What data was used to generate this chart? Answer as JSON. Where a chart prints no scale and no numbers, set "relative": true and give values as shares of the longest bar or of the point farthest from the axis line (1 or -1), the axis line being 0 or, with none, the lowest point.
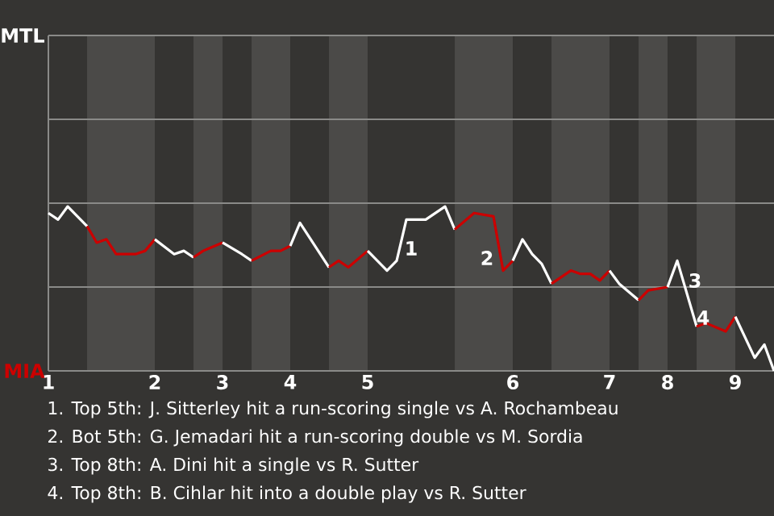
{
  "chart_data": {
    "type": "line",
    "relative": true,
    "categories": [
      "1",
      null,
      null,
      null,
      null,
      null,
      null,
      null,
      null,
      null,
      null,
      "2",
      null,
      null,
      null,
      null,
      null,
      null,
      "3",
      null,
      null,
      null,
      null,
      null,
      null,
      "4",
      null,
      null,
      null,
      null,
      null,
      null,
      null,
      "5",
      null,
      null,
      null,
      null,
      null,
      null,
      null,
      null,
      null,
      null,
      null,
      null,
      null,
      null,
      "6",
      null,
      null,
      null,
      null,
      null,
      null,
      null,
      null,
      null,
      "7",
      null,
      null,
      null,
      null,
      null,
      "8",
      null,
      null,
      null,
      null,
      null,
      null,
      "9",
      null,
      null,
      null,
      null
    ],
    "marker": "none",
    "line_style": "solid",
    "ref_lines": [
      {
        "axis": "y",
        "value": 0.51,
        "color": "#8a8a88"
      },
      {
        "axis": "y",
        "value": 1.02,
        "color": "#8a8a88"
      },
      {
        "axis": "y",
        "value": 1.53,
        "color": "#8a8a88"
      },
      {
        "axis": "y",
        "value": 2.04,
        "color": "#8a8a88"
      }
    ],
    "series": [
      {
        "color": "#ffffff",
        "values": [
          0.96,
          0.92,
          1,
          null,
          0.88,
          null,
          null,
          null,
          null,
          null,
          null,
          null,
          null,
          null,
          null,
          null,
          null,
          null,
          null,
          null,
          null,
          null,
          null,
          null,
          null,
          null,
          null,
          null,
          null,
          null,
          null,
          null,
          null,
          null,
          null,
          null,
          null,
          null,
          null,
          null,
          null,
          null,
          null,
          null,
          null,
          null,
          null,
          null,
          null,
          null,
          null,
          null,
          null,
          null,
          null,
          null,
          null,
          null,
          null,
          null,
          null,
          null,
          null,
          null,
          null,
          null,
          null,
          null,
          null,
          null,
          null,
          null,
          null,
          null,
          null,
          null
        ]
      },
      {
        "color": "#cc0000",
        "values": [
          null,
          null,
          null,
          null,
          0.88,
          0.78,
          0.8,
          0.71,
          null,
          0.71,
          0.73,
          0.8,
          null,
          null,
          null,
          null,
          null,
          null,
          null,
          null,
          null,
          null,
          null,
          null,
          null,
          null,
          null,
          null,
          null,
          null,
          null,
          null,
          null,
          null,
          null,
          null,
          null,
          null,
          null,
          null,
          null,
          null,
          null,
          null,
          null,
          null,
          null,
          null,
          null,
          null,
          null,
          null,
          null,
          null,
          null,
          null,
          null,
          null,
          null,
          null,
          null,
          null,
          null,
          null,
          null,
          null,
          null,
          null,
          null,
          null,
          null,
          null,
          null,
          null,
          null,
          null
        ]
      },
      {
        "color": "#ffffff",
        "values": [
          null,
          null,
          null,
          null,
          null,
          null,
          null,
          null,
          null,
          null,
          null,
          0.8,
          null,
          0.71,
          0.73,
          0.69,
          null,
          null,
          null,
          null,
          null,
          null,
          null,
          null,
          null,
          null,
          null,
          null,
          null,
          null,
          null,
          null,
          null,
          null,
          null,
          null,
          null,
          null,
          null,
          null,
          null,
          null,
          null,
          null,
          null,
          null,
          null,
          null,
          null,
          null,
          null,
          null,
          null,
          null,
          null,
          null,
          null,
          null,
          null,
          null,
          null,
          null,
          null,
          null,
          null,
          null,
          null,
          null,
          null,
          null,
          null,
          null,
          null,
          null,
          null,
          null
        ]
      },
      {
        "color": "#cc0000",
        "values": [
          null,
          null,
          null,
          null,
          null,
          null,
          null,
          null,
          null,
          null,
          null,
          null,
          null,
          null,
          null,
          0.69,
          0.73,
          null,
          0.78,
          null,
          null,
          null,
          null,
          null,
          null,
          null,
          null,
          null,
          null,
          null,
          null,
          null,
          null,
          null,
          null,
          null,
          null,
          null,
          null,
          null,
          null,
          null,
          null,
          null,
          null,
          null,
          null,
          null,
          null,
          null,
          null,
          null,
          null,
          null,
          null,
          null,
          null,
          null,
          null,
          null,
          null,
          null,
          null,
          null,
          null,
          null,
          null,
          null,
          null,
          null,
          null,
          null,
          null,
          null,
          null,
          null
        ]
      },
      {
        "color": "#ffffff",
        "values": [
          null,
          null,
          null,
          null,
          null,
          null,
          null,
          null,
          null,
          null,
          null,
          null,
          null,
          null,
          null,
          null,
          null,
          null,
          0.78,
          null,
          0.71,
          0.67,
          null,
          null,
          null,
          null,
          null,
          null,
          null,
          null,
          null,
          null,
          null,
          null,
          null,
          null,
          null,
          null,
          null,
          null,
          null,
          null,
          null,
          null,
          null,
          null,
          null,
          null,
          null,
          null,
          null,
          null,
          null,
          null,
          null,
          null,
          null,
          null,
          null,
          null,
          null,
          null,
          null,
          null,
          null,
          null,
          null,
          null,
          null,
          null,
          null,
          null,
          null,
          null,
          null,
          null
        ]
      },
      {
        "color": "#cc0000",
        "values": [
          null,
          null,
          null,
          null,
          null,
          null,
          null,
          null,
          null,
          null,
          null,
          null,
          null,
          null,
          null,
          null,
          null,
          null,
          null,
          null,
          null,
          0.67,
          null,
          0.73,
          0.73,
          0.76,
          null,
          null,
          null,
          null,
          null,
          null,
          null,
          null,
          null,
          null,
          null,
          null,
          null,
          null,
          null,
          null,
          null,
          null,
          null,
          null,
          null,
          null,
          null,
          null,
          null,
          null,
          null,
          null,
          null,
          null,
          null,
          null,
          null,
          null,
          null,
          null,
          null,
          null,
          null,
          null,
          null,
          null,
          null,
          null,
          null,
          null,
          null,
          null,
          null,
          null
        ]
      },
      {
        "color": "#ffffff",
        "values": [
          null,
          null,
          null,
          null,
          null,
          null,
          null,
          null,
          null,
          null,
          null,
          null,
          null,
          null,
          null,
          null,
          null,
          null,
          null,
          null,
          null,
          null,
          null,
          null,
          null,
          0.76,
          0.9,
          null,
          null,
          0.63,
          null,
          null,
          null,
          null,
          null,
          null,
          null,
          null,
          null,
          null,
          null,
          null,
          null,
          null,
          null,
          null,
          null,
          null,
          null,
          null,
          null,
          null,
          null,
          null,
          null,
          null,
          null,
          null,
          null,
          null,
          null,
          null,
          null,
          null,
          null,
          null,
          null,
          null,
          null,
          null,
          null,
          null,
          null,
          null,
          null,
          null
        ]
      },
      {
        "color": "#cc0000",
        "values": [
          null,
          null,
          null,
          null,
          null,
          null,
          null,
          null,
          null,
          null,
          null,
          null,
          null,
          null,
          null,
          null,
          null,
          null,
          null,
          null,
          null,
          null,
          null,
          null,
          null,
          null,
          null,
          null,
          null,
          0.63,
          0.67,
          0.63,
          null,
          0.73,
          null,
          null,
          null,
          null,
          null,
          null,
          null,
          null,
          null,
          null,
          null,
          null,
          null,
          null,
          null,
          null,
          null,
          null,
          null,
          null,
          null,
          null,
          null,
          null,
          null,
          null,
          null,
          null,
          null,
          null,
          null,
          null,
          null,
          null,
          null,
          null,
          null,
          null,
          null,
          null,
          null,
          null
        ]
      },
      {
        "color": "#ffffff",
        "values": [
          null,
          null,
          null,
          null,
          null,
          null,
          null,
          null,
          null,
          null,
          null,
          null,
          null,
          null,
          null,
          null,
          null,
          null,
          null,
          null,
          null,
          null,
          null,
          null,
          null,
          null,
          null,
          null,
          null,
          null,
          null,
          null,
          null,
          0.73,
          null,
          0.61,
          0.67,
          0.92,
          null,
          0.92,
          null,
          1,
          0.86,
          null,
          null,
          null,
          null,
          null,
          null,
          null,
          null,
          null,
          null,
          null,
          null,
          null,
          null,
          null,
          null,
          null,
          null,
          null,
          null,
          null,
          null,
          null,
          null,
          null,
          null,
          null,
          null,
          null,
          null,
          null,
          null,
          null
        ]
      },
      {
        "color": "#cc0000",
        "values": [
          null,
          null,
          null,
          null,
          null,
          null,
          null,
          null,
          null,
          null,
          null,
          null,
          null,
          null,
          null,
          null,
          null,
          null,
          null,
          null,
          null,
          null,
          null,
          null,
          null,
          null,
          null,
          null,
          null,
          null,
          null,
          null,
          null,
          null,
          null,
          null,
          null,
          null,
          null,
          null,
          null,
          null,
          0.86,
          null,
          0.96,
          null,
          0.94,
          0.61,
          0.67,
          null,
          null,
          null,
          null,
          null,
          null,
          null,
          null,
          null,
          null,
          null,
          null,
          null,
          null,
          null,
          null,
          null,
          null,
          null,
          null,
          null,
          null,
          null,
          null,
          null,
          null,
          null
        ]
      },
      {
        "color": "#ffffff",
        "values": [
          null,
          null,
          null,
          null,
          null,
          null,
          null,
          null,
          null,
          null,
          null,
          null,
          null,
          null,
          null,
          null,
          null,
          null,
          null,
          null,
          null,
          null,
          null,
          null,
          null,
          null,
          null,
          null,
          null,
          null,
          null,
          null,
          null,
          null,
          null,
          null,
          null,
          null,
          null,
          null,
          null,
          null,
          null,
          null,
          null,
          null,
          null,
          null,
          0.67,
          0.8,
          0.71,
          0.65,
          0.53,
          null,
          null,
          null,
          null,
          null,
          null,
          null,
          null,
          null,
          null,
          null,
          null,
          null,
          null,
          null,
          null,
          null,
          null,
          null,
          null,
          null,
          null,
          null
        ]
      },
      {
        "color": "#cc0000",
        "values": [
          null,
          null,
          null,
          null,
          null,
          null,
          null,
          null,
          null,
          null,
          null,
          null,
          null,
          null,
          null,
          null,
          null,
          null,
          null,
          null,
          null,
          null,
          null,
          null,
          null,
          null,
          null,
          null,
          null,
          null,
          null,
          null,
          null,
          null,
          null,
          null,
          null,
          null,
          null,
          null,
          null,
          null,
          null,
          null,
          null,
          null,
          null,
          null,
          null,
          null,
          null,
          null,
          0.53,
          null,
          0.61,
          0.59,
          0.59,
          0.55,
          0.61,
          null,
          null,
          null,
          null,
          null,
          null,
          null,
          null,
          null,
          null,
          null,
          null,
          null,
          null,
          null,
          null,
          null
        ]
      },
      {
        "color": "#ffffff",
        "values": [
          null,
          null,
          null,
          null,
          null,
          null,
          null,
          null,
          null,
          null,
          null,
          null,
          null,
          null,
          null,
          null,
          null,
          null,
          null,
          null,
          null,
          null,
          null,
          null,
          null,
          null,
          null,
          null,
          null,
          null,
          null,
          null,
          null,
          null,
          null,
          null,
          null,
          null,
          null,
          null,
          null,
          null,
          null,
          null,
          null,
          null,
          null,
          null,
          null,
          null,
          null,
          null,
          null,
          null,
          null,
          null,
          null,
          null,
          0.61,
          0.53,
          null,
          0.43,
          null,
          null,
          null,
          null,
          null,
          null,
          null,
          null,
          null,
          null,
          null,
          null,
          null,
          null
        ]
      },
      {
        "color": "#cc0000",
        "values": [
          null,
          null,
          null,
          null,
          null,
          null,
          null,
          null,
          null,
          null,
          null,
          null,
          null,
          null,
          null,
          null,
          null,
          null,
          null,
          null,
          null,
          null,
          null,
          null,
          null,
          null,
          null,
          null,
          null,
          null,
          null,
          null,
          null,
          null,
          null,
          null,
          null,
          null,
          null,
          null,
          null,
          null,
          null,
          null,
          null,
          null,
          null,
          null,
          null,
          null,
          null,
          null,
          null,
          null,
          null,
          null,
          null,
          null,
          null,
          null,
          null,
          0.43,
          0.49,
          null,
          0.51,
          null,
          null,
          null,
          null,
          null,
          null,
          null,
          null,
          null,
          null,
          null
        ]
      },
      {
        "color": "#ffffff",
        "values": [
          null,
          null,
          null,
          null,
          null,
          null,
          null,
          null,
          null,
          null,
          null,
          null,
          null,
          null,
          null,
          null,
          null,
          null,
          null,
          null,
          null,
          null,
          null,
          null,
          null,
          null,
          null,
          null,
          null,
          null,
          null,
          null,
          null,
          null,
          null,
          null,
          null,
          null,
          null,
          null,
          null,
          null,
          null,
          null,
          null,
          null,
          null,
          null,
          null,
          null,
          null,
          null,
          null,
          null,
          null,
          null,
          null,
          null,
          null,
          null,
          null,
          null,
          null,
          null,
          0.51,
          0.67,
          null,
          0.27,
          null,
          null,
          null,
          null,
          null,
          null,
          null,
          null
        ]
      },
      {
        "color": "#cc0000",
        "values": [
          null,
          null,
          null,
          null,
          null,
          null,
          null,
          null,
          null,
          null,
          null,
          null,
          null,
          null,
          null,
          null,
          null,
          null,
          null,
          null,
          null,
          null,
          null,
          null,
          null,
          null,
          null,
          null,
          null,
          null,
          null,
          null,
          null,
          null,
          null,
          null,
          null,
          null,
          null,
          null,
          null,
          null,
          null,
          null,
          null,
          null,
          null,
          null,
          null,
          null,
          null,
          null,
          null,
          null,
          null,
          null,
          null,
          null,
          null,
          null,
          null,
          null,
          null,
          null,
          null,
          null,
          null,
          0.27,
          0.29,
          null,
          0.24,
          0.33,
          null,
          null,
          null,
          null
        ]
      },
      {
        "color": "#ffffff",
        "values": [
          null,
          null,
          null,
          null,
          null,
          null,
          null,
          null,
          null,
          null,
          null,
          null,
          null,
          null,
          null,
          null,
          null,
          null,
          null,
          null,
          null,
          null,
          null,
          null,
          null,
          null,
          null,
          null,
          null,
          null,
          null,
          null,
          null,
          null,
          null,
          null,
          null,
          null,
          null,
          null,
          null,
          null,
          null,
          null,
          null,
          null,
          null,
          null,
          null,
          null,
          null,
          null,
          null,
          null,
          null,
          null,
          null,
          null,
          null,
          null,
          null,
          null,
          null,
          null,
          null,
          null,
          null,
          null,
          null,
          null,
          null,
          0.33,
          null,
          0.08,
          0.16,
          0
        ]
      }
    ],
    "annotations": [
      "MTL",
      "MIA",
      "1",
      "2",
      "3",
      "4",
      "1. Top 5th: J. Sitterley hit a run-scoring single vs A. Rochambeau",
      "2. Bot 5th: G. Jemadari hit a run-scoring double vs M. Sordia",
      "3. Top 8th: A. Dini hit a single vs R. Sutter",
      "4. Top 8th: B. Cihlar hit into a double play vs R. Sutter"
    ]
  }
}
